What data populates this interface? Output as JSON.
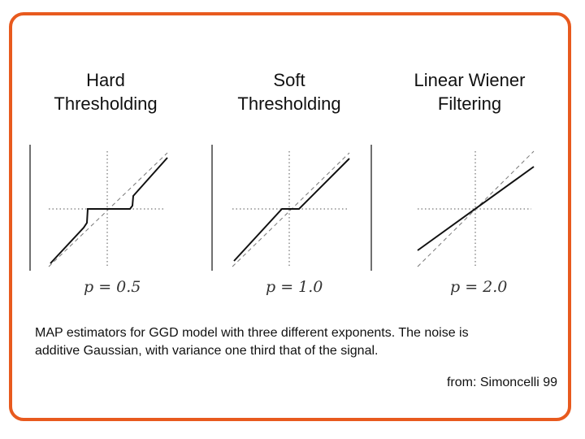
{
  "panels": [
    {
      "title_line1": "Hard",
      "title_line2": "Thresholding",
      "param": "p = 0.5"
    },
    {
      "title_line1": "Soft",
      "title_line2": "Thresholding",
      "param": "p = 1.0"
    },
    {
      "title_line1": "Linear Wiener",
      "title_line2": "Filtering",
      "param": "p = 2.0"
    }
  ],
  "caption": {
    "line1": "MAP estimators for GGD model with three different exponents. The noise is",
    "line2": "additive Gaussian, with variance one third that of the signal."
  },
  "credit": "from: Simoncelli 99",
  "colors": {
    "frame": "#e85a1e",
    "curve": "#111111",
    "dashed": "#777777"
  }
}
